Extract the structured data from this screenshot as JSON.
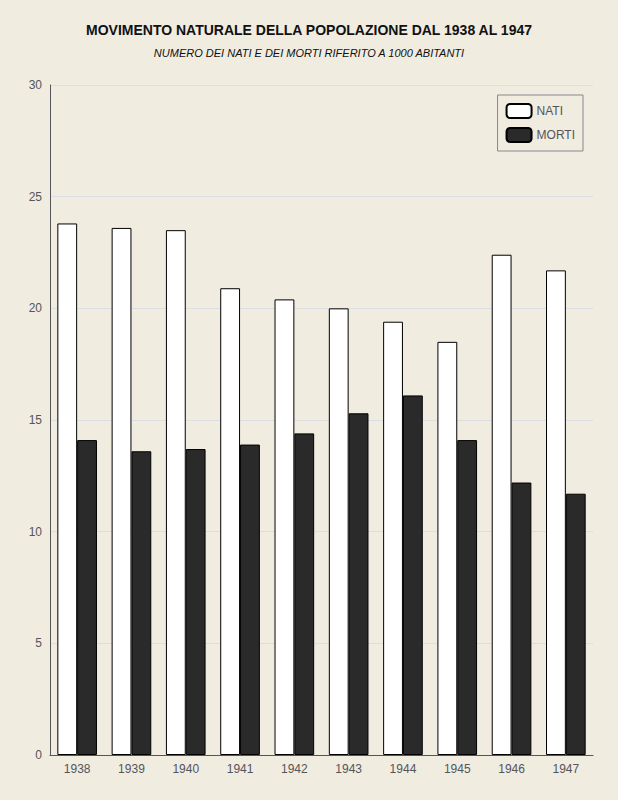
{
  "chart_data": {
    "type": "bar",
    "title": "MOVIMENTO NATURALE DELLA POPOLAZIONE DAL 1938 AL 1947",
    "subtitle": "NUMERO DEI NATI E DEI MORTI RIFERITO A 1000 ABITANTI",
    "categories": [
      "1938",
      "1939",
      "1940",
      "1941",
      "1942",
      "1943",
      "1944",
      "1945",
      "1946",
      "1947"
    ],
    "series": [
      {
        "name": "NATI",
        "color": "#ffffff",
        "values": [
          23.8,
          23.6,
          23.5,
          20.9,
          20.4,
          20.0,
          19.4,
          18.5,
          22.4,
          21.7
        ]
      },
      {
        "name": "MORTI",
        "color": "#2a2a2a",
        "values": [
          14.1,
          13.6,
          13.7,
          13.9,
          14.4,
          15.3,
          16.1,
          14.1,
          12.2,
          11.7
        ]
      }
    ],
    "ylim": [
      0,
      30
    ],
    "yticks": [
      0,
      5,
      10,
      15,
      20,
      25,
      30
    ],
    "grid": true,
    "legend": "upper right"
  }
}
